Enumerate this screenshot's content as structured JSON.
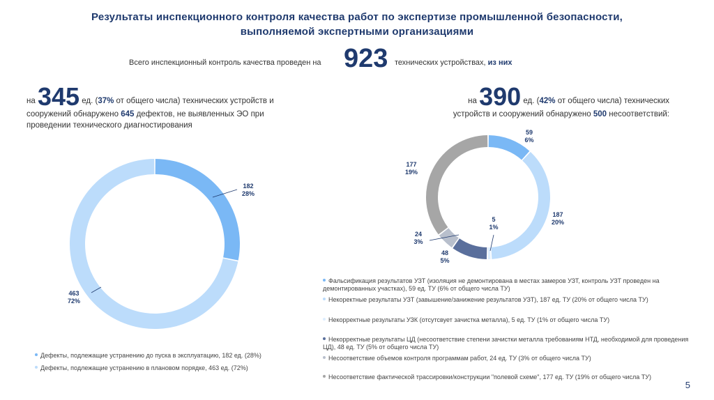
{
  "title": {
    "line1": "Результаты инспекционного контроля качества работ по экспертизе промышленной безопасности,",
    "line2": "выполняемой экспертными организациями"
  },
  "total": {
    "prefix": "Всего инспекционный контроль качества проведен на",
    "number": "923",
    "suffix": "технических устройствах,",
    "suffix_bold": "из них"
  },
  "left": {
    "pre": "на",
    "big": "345",
    "text1": " ед. (",
    "pct": "37%",
    "text2": " от общего числа) технических устройств и сооружений обнаружено ",
    "defects": "645",
    "text3": " дефектов, не выявленных ЭО при проведении технического диагностирования"
  },
  "right": {
    "pre": "на",
    "big": "390",
    "text1": " ед. (",
    "pct": "42%",
    "text2": " от общего числа) технических устройств и сооружений  обнаружено ",
    "count": "500",
    "text3": " несоответствий:"
  },
  "chart_data": [
    {
      "type": "pie",
      "variant": "donut",
      "title": "",
      "categories": [
        "Дефекты, подлежащие устранению до пуска в эксплуатацию, 182 ед. (28%)",
        "Дефекты, подлежащие устранению в плановом порядке, 463 ед. (72%)"
      ],
      "values": [
        182,
        463
      ],
      "value_labels": [
        "182",
        "463"
      ],
      "percent_labels": [
        "28%",
        "72%"
      ],
      "colors": [
        "#7ab8f5",
        "#bcdcfb"
      ]
    },
    {
      "type": "pie",
      "variant": "donut",
      "title": "",
      "categories": [
        "Фальсификация результатов УЗТ (изоляция не демонтирована в местах замеров УЗТ, контроль УЗТ проведен на демонтированных участках), 59 ед. ТУ (6% от общего числа ТУ)",
        "Некоректные результаты УЗТ (завышение/занижение результатов УЗТ), 187 ед. ТУ (20% от общего числа ТУ)",
        "Некорректные результаты УЗК (отсутсвует зачистка металла), 5 ед. ТУ (1% от общего числа ТУ)",
        "Некорректные результаты ЦД (несоответствие степени зачистки металла требованиям НТД, необходимой для проведения ЦД), 48 ед. ТУ (5% от общего числа ТУ)",
        "Несоответствие объемов контроля программам работ, 24 ед. ТУ (3% от общего числа ТУ)",
        "Несоответствие фактической трассировки/конструкции \"полевой схеме\", 177 ед. ТУ (19% от общего числа ТУ)"
      ],
      "values": [
        59,
        187,
        5,
        48,
        24,
        177
      ],
      "value_labels": [
        "59",
        "187",
        "5",
        "48",
        "24",
        "177"
      ],
      "percent_labels": [
        "6%",
        "20%",
        "1%",
        "5%",
        "3%",
        "19%"
      ],
      "colors": [
        "#7ab8f5",
        "#bcdcfb",
        "#ddeefe",
        "#5a6f9c",
        "#b8bfcc",
        "#a6a6a6"
      ]
    }
  ],
  "page_number": "5"
}
